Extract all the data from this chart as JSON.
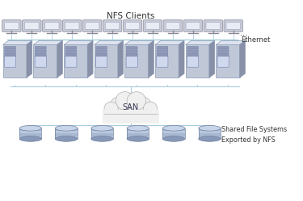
{
  "bg_color": "#ffffff",
  "nfs_label": "NFS Clients",
  "ethernet_label": "Ethernet",
  "san_label": "SAN",
  "shared_label": "Shared File Systems\nExported by NFS",
  "num_monitors": 12,
  "num_servers": 8,
  "num_disks": 6,
  "line_color": "#a8cce0",
  "cloud_color": "#f0f0f0",
  "cloud_edge": "#b0b0b0",
  "text_color": "#333333",
  "monitor_face": "#c8ccd8",
  "monitor_screen": "#d8dce8",
  "monitor_dark": "#888898",
  "server_front": "#c0c8d8",
  "server_top": "#dde4f0",
  "server_side": "#8890a8",
  "server_panel": "#d0d8ee",
  "server_edge": "#8898b0",
  "disk_body": "#a8b4cc",
  "disk_top": "#c8d4e8",
  "disk_side": "#8090a8",
  "disk_edge": "#7080a0",
  "dots_label": "..."
}
